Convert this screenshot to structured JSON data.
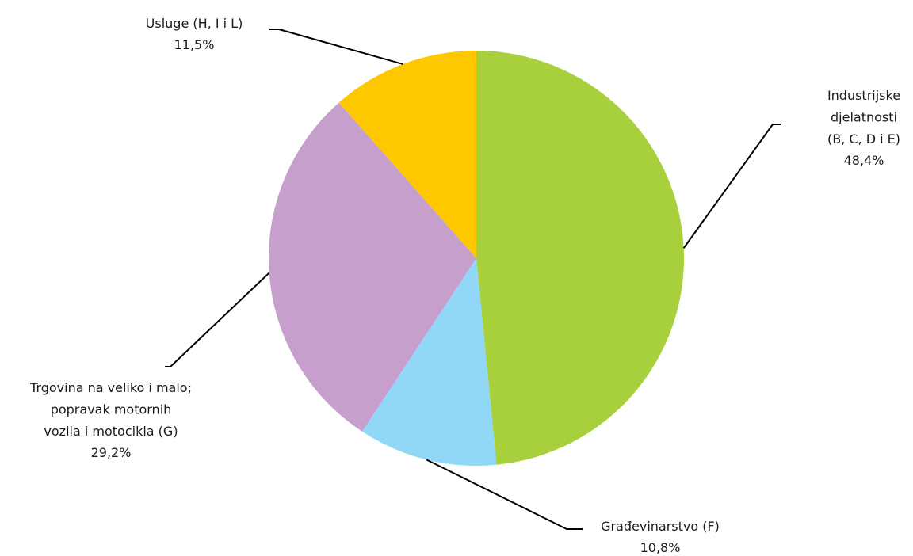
{
  "chart_data": {
    "type": "pie",
    "categories": [
      "Industrijske\ndjelatnosti\n(B, C, D i  E)",
      "Građevinarstvo (F)",
      "Trgovina na veliko i malo;\npopravak motornih\nvozila i motocikla (G)",
      "Usluge (H, I i L)"
    ],
    "values": [
      48.4,
      10.8,
      29.2,
      11.5
    ],
    "value_labels": [
      "48,4%",
      "10,8%",
      "29,2%",
      "11,5%"
    ],
    "colors": [
      "#a8cf3c",
      "#90d8f6",
      "#c69fcc",
      "#fdc800"
    ]
  }
}
